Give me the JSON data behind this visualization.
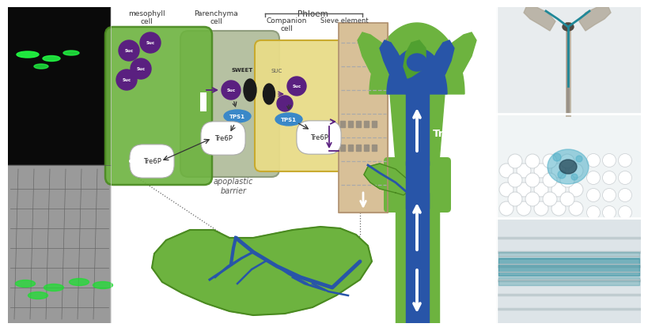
{
  "bg_color": "#ffffff",
  "green_cell_color": "#6db33f",
  "green_cell_edge": "#4a8a20",
  "gray_cell_color": "#b0bc9a",
  "yellow_cell_color": "#e8dc88",
  "yellow_cell_edge": "#c8a828",
  "tan_sieve_color": "#d8c098",
  "purple_suc_color": "#5a2080",
  "blue_tps1_color": "#3a88c8",
  "shoot_green": "#6db33f",
  "shoot_blue": "#2855a8",
  "phloem_label": "Phloem",
  "mesophyll_label": "mesophyll\ncell",
  "parenchyma_label": "Parenchyma\ncell",
  "companion_label": "Companion\ncell",
  "sieve_label": "Sieve element",
  "apoplastic_label": "apoplastic\nbarrier",
  "sweet_label": "SWEET",
  "suc_label": "Suc",
  "suc_small_label": "SUC",
  "tre6p_label": "Tre6P",
  "tps1_label": "TPS1",
  "tre6p_big_label": "Tre6P"
}
